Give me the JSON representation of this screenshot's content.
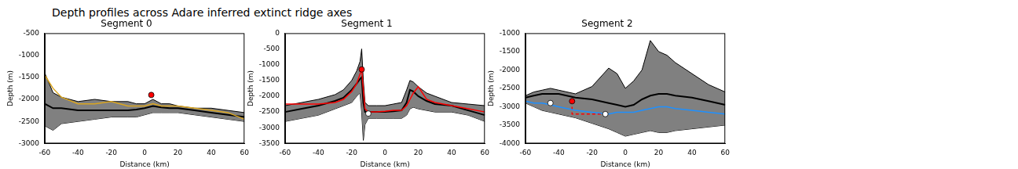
{
  "title": "Depth profiles across Adare inferred extinct ridge axes",
  "chart_data": [
    {
      "type": "line",
      "title": "Segment 0",
      "x_label": "Distance (km)",
      "y_label": "Depth (m)",
      "xlim": [
        -60,
        60
      ],
      "xticks": [
        -60,
        -40,
        -20,
        0,
        20,
        40,
        60
      ],
      "ylim": [
        -3000,
        -500
      ],
      "yticks": [
        -3000,
        -2500,
        -2000,
        -1500,
        -1000,
        -500
      ],
      "grid": false,
      "x": [
        -60,
        -55,
        -50,
        -40,
        -30,
        -20,
        -10,
        -5,
        0,
        5,
        10,
        15,
        20,
        30,
        40,
        50,
        60
      ],
      "series": [
        {
          "type": "band",
          "color": "#808080",
          "upper": [
            -1400,
            -1850,
            -1950,
            -2050,
            -2000,
            -2050,
            -2050,
            -2100,
            -2100,
            -2000,
            -2100,
            -2100,
            -2150,
            -2200,
            -2200,
            -2250,
            -2300
          ],
          "lower": [
            -2600,
            -2700,
            -2550,
            -2500,
            -2450,
            -2400,
            -2400,
            -2400,
            -2350,
            -2300,
            -2300,
            -2300,
            -2300,
            -2350,
            -2400,
            -2450,
            -2500
          ]
        },
        {
          "type": "line",
          "color": "#000000",
          "values": [
            -2100,
            -2200,
            -2200,
            -2250,
            -2250,
            -2250,
            -2250,
            -2230,
            -2200,
            -2150,
            -2180,
            -2200,
            -2200,
            -2250,
            -2300,
            -2350,
            -2400
          ]
        },
        {
          "type": "line",
          "color": "#daa520",
          "values": [
            -1450,
            -1750,
            -1950,
            -2100,
            -2100,
            -2050,
            -2150,
            -2150,
            -2150,
            -2100,
            -2150,
            -2150,
            -2150,
            -2200,
            -2250,
            -2300,
            -2450
          ]
        },
        {
          "type": "scatter",
          "color": "#ff0000",
          "marker": "circle",
          "x": [
            4
          ],
          "values": [
            -1900
          ]
        }
      ]
    },
    {
      "type": "line",
      "title": "Segment 1",
      "x_label": "Distance (km)",
      "y_label": "Depth (m)",
      "xlim": [
        -60,
        60
      ],
      "xticks": [
        -60,
        -40,
        -20,
        0,
        20,
        40,
        60
      ],
      "ylim": [
        -3500,
        0
      ],
      "yticks": [
        -3500,
        -3000,
        -2500,
        -2000,
        -1500,
        -1000,
        -500,
        0
      ],
      "grid": false,
      "x": [
        -60,
        -50,
        -40,
        -30,
        -25,
        -20,
        -17,
        -15,
        -14,
        -13,
        -12,
        -10,
        -5,
        0,
        5,
        10,
        13,
        15,
        17,
        20,
        25,
        30,
        40,
        50,
        60
      ],
      "series": [
        {
          "type": "band",
          "color": "#808080",
          "upper": [
            -2300,
            -2200,
            -2100,
            -1950,
            -1800,
            -1500,
            -1200,
            -900,
            -500,
            -1500,
            -2200,
            -2300,
            -2300,
            -2300,
            -2250,
            -2200,
            -1800,
            -1500,
            -1550,
            -1700,
            -1900,
            -2000,
            -2200,
            -2250,
            -2300
          ],
          "lower": [
            -2800,
            -2700,
            -2600,
            -2400,
            -2300,
            -2200,
            -2000,
            -1900,
            -2500,
            -3400,
            -2900,
            -2700,
            -2700,
            -2700,
            -2700,
            -2700,
            -2600,
            -2400,
            -2350,
            -2400,
            -2450,
            -2500,
            -2500,
            -2600,
            -2800
          ]
        },
        {
          "type": "line",
          "color": "#000000",
          "values": [
            -2500,
            -2400,
            -2300,
            -2150,
            -2050,
            -1800,
            -1600,
            -1450,
            -1400,
            -2200,
            -2500,
            -2500,
            -2500,
            -2500,
            -2480,
            -2450,
            -2200,
            -1800,
            -1850,
            -2000,
            -2150,
            -2250,
            -2300,
            -2450,
            -2600
          ]
        },
        {
          "type": "line",
          "color": "#ff0000",
          "values": [
            -2250,
            -2250,
            -2250,
            -2200,
            -2100,
            -1850,
            -1600,
            -1300,
            -1150,
            -1800,
            -2400,
            -2500,
            -2500,
            -2480,
            -2450,
            -2450,
            -2300,
            -2100,
            -1900,
            -1700,
            -2100,
            -2200,
            -2300,
            -2400,
            -2500
          ]
        },
        {
          "type": "scatter",
          "color": "#ff0000",
          "marker": "circle",
          "x": [
            -14
          ],
          "values": [
            -1150
          ]
        },
        {
          "type": "scatter",
          "color": "#ffffff",
          "marker": "circle",
          "x": [
            -10
          ],
          "values": [
            -2550
          ]
        }
      ]
    },
    {
      "type": "line",
      "title": "Segment 2",
      "x_label": "Distance (km)",
      "y_label": "Depth (m)",
      "xlim": [
        -60,
        60
      ],
      "xticks": [
        -60,
        -40,
        -20,
        0,
        20,
        40,
        60
      ],
      "ylim": [
        -4000,
        -1000
      ],
      "yticks": [
        -4000,
        -3500,
        -3000,
        -2500,
        -2000,
        -1500,
        -1000
      ],
      "grid": false,
      "x": [
        -60,
        -55,
        -50,
        -45,
        -40,
        -30,
        -20,
        -10,
        -5,
        0,
        5,
        10,
        15,
        20,
        25,
        30,
        40,
        50,
        60
      ],
      "series": [
        {
          "type": "band",
          "color": "#808080",
          "upper": [
            -2700,
            -2600,
            -2550,
            -2500,
            -2550,
            -2650,
            -2450,
            -1950,
            -2100,
            -2500,
            -2300,
            -2000,
            -1200,
            -1500,
            -1600,
            -1800,
            -2100,
            -2400,
            -2600
          ],
          "lower": [
            -2900,
            -3000,
            -3100,
            -3150,
            -3200,
            -3300,
            -3450,
            -3600,
            -3700,
            -3800,
            -3750,
            -3700,
            -3650,
            -3700,
            -3700,
            -3650,
            -3600,
            -3550,
            -3500
          ]
        },
        {
          "type": "line",
          "color": "#000000",
          "values": [
            -2750,
            -2700,
            -2650,
            -2650,
            -2650,
            -2750,
            -2800,
            -2900,
            -2950,
            -3000,
            -2950,
            -2800,
            -2700,
            -2650,
            -2650,
            -2700,
            -2750,
            -2850,
            -2950
          ]
        },
        {
          "type": "line",
          "color": "#1e90ff",
          "values": [
            -2850,
            -2900,
            -2900,
            -2950,
            -3000,
            -3100,
            -3150,
            -3200,
            -3150,
            -3150,
            -3150,
            -3100,
            -3050,
            -3000,
            -3000,
            -3050,
            -3100,
            -3150,
            -3200
          ]
        },
        {
          "type": "line",
          "color": "#ff0000",
          "line_style": "dashed",
          "x": [
            -32,
            -32,
            -12
          ],
          "values": [
            -3000,
            -3200,
            -3200
          ]
        },
        {
          "type": "scatter",
          "color": "#ff0000",
          "marker": "circle",
          "x": [
            -32
          ],
          "values": [
            -2850
          ]
        },
        {
          "type": "scatter",
          "color": "#ffffff",
          "marker": "circle",
          "x": [
            -45,
            -12
          ],
          "values": [
            -2900,
            -3200
          ]
        }
      ]
    }
  ]
}
